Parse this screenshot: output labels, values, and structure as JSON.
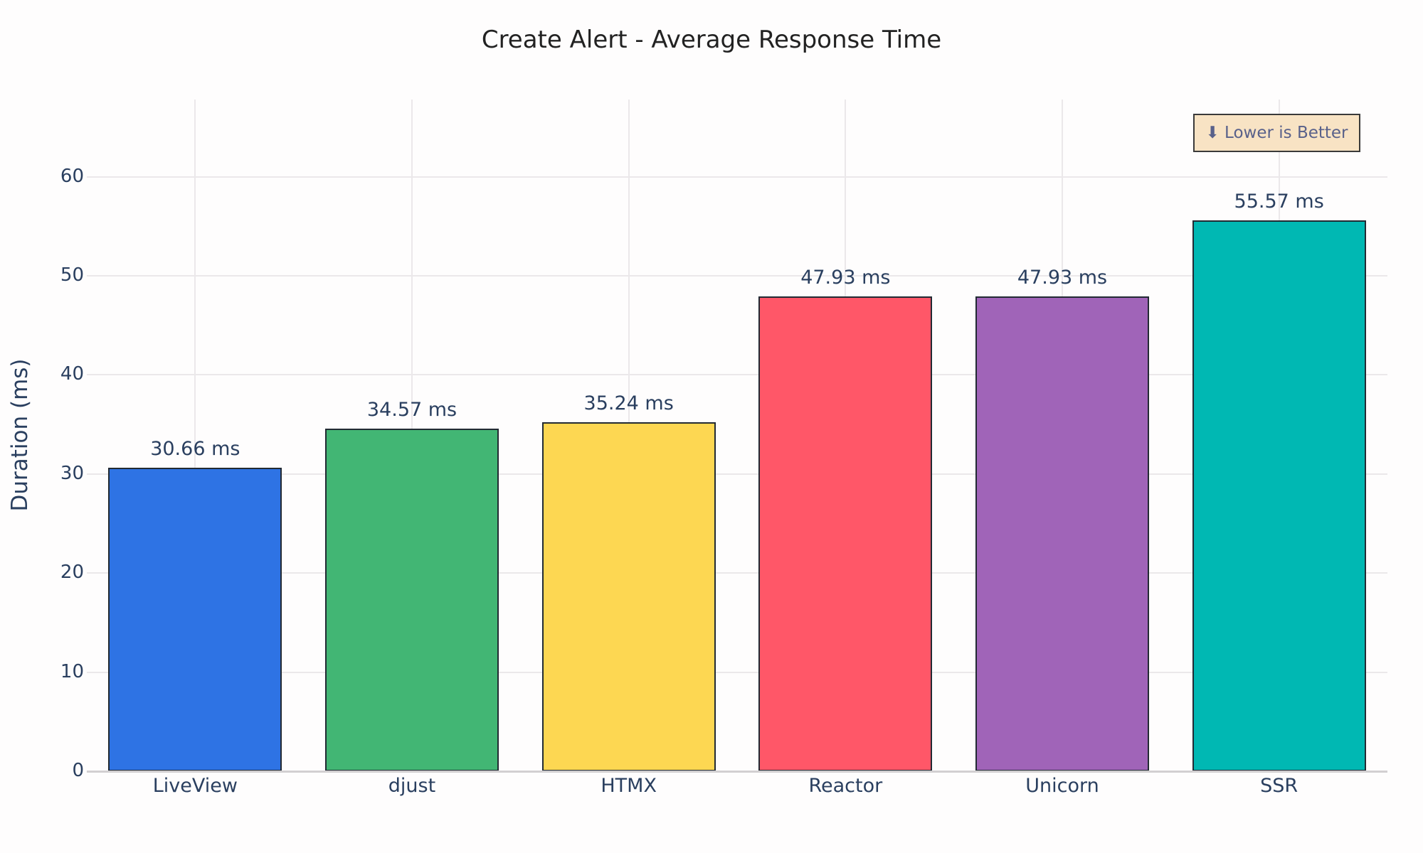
{
  "chart_data": {
    "type": "bar",
    "title": "Create Alert - Average Response Time",
    "xlabel": "",
    "ylabel": "Duration (ms)",
    "categories": [
      "LiveView",
      "djust",
      "HTMX",
      "Reactor",
      "Unicorn",
      "SSR"
    ],
    "values": [
      30.66,
      34.57,
      35.24,
      47.93,
      47.93,
      55.57
    ],
    "value_labels": [
      "30.66 ms",
      "34.57 ms",
      "35.24 ms",
      "47.93 ms",
      "47.93 ms",
      "55.57 ms"
    ],
    "colors": [
      "#2e73e4",
      "#42b674",
      "#fdd752",
      "#ff5768",
      "#a064b8",
      "#00b8b3"
    ],
    "yticks": [
      0,
      10,
      20,
      30,
      40,
      50,
      60
    ],
    "ylim": [
      0,
      68
    ],
    "grid": true,
    "legend": null,
    "annotation": "⬇ Lower is Better"
  }
}
